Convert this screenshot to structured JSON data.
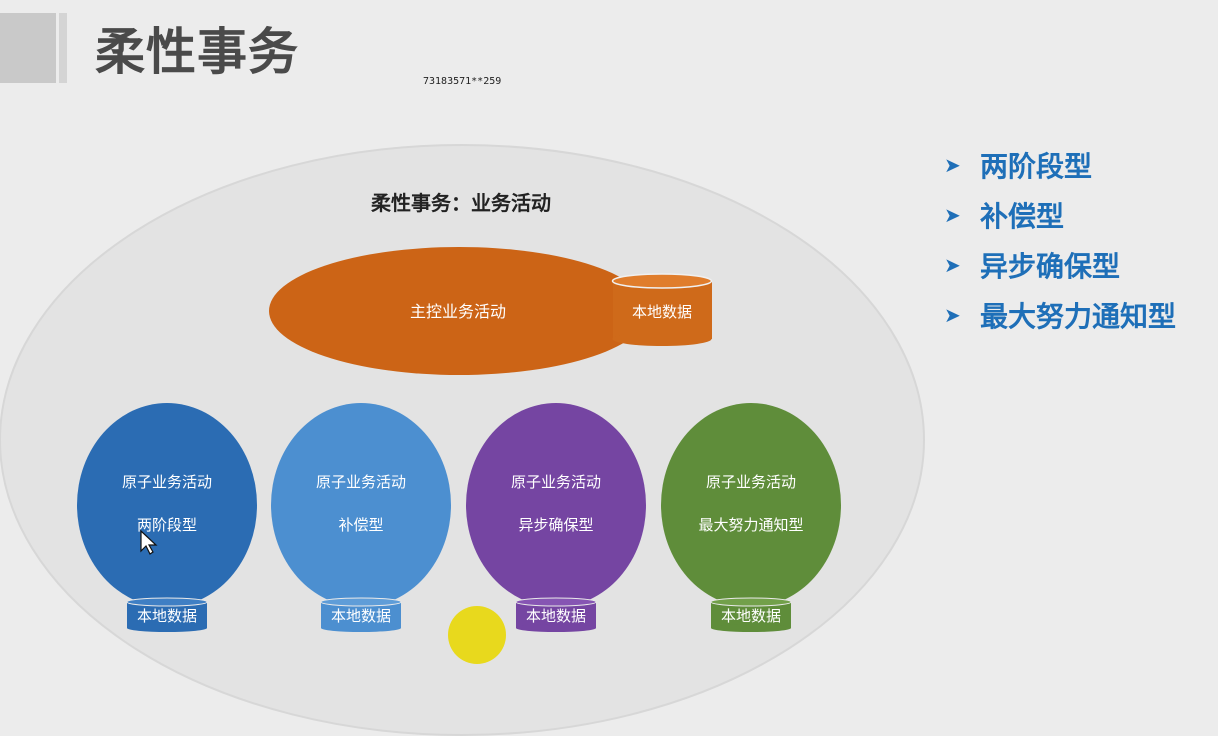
{
  "header": {
    "title": "柔性事务",
    "watermark_id": "73183571**259"
  },
  "diagram": {
    "title": "柔性事务：业务活动",
    "main_activity": {
      "label": "主控业务活动",
      "storage_label": "本地数据",
      "color": "#cc6416"
    },
    "atomic_activities": [
      {
        "line1": "原子业务活动",
        "line2": "两阶段型",
        "storage": "本地数据",
        "color": "#2b6cb3"
      },
      {
        "line1": "原子业务活动",
        "line2": "补偿型",
        "storage": "本地数据",
        "color": "#4c8fd0"
      },
      {
        "line1": "原子业务活动",
        "line2": "异步确保型",
        "storage": "本地数据",
        "color": "#7545a2"
      },
      {
        "line1": "原子业务活动",
        "line2": "最大努力通知型",
        "storage": "本地数据",
        "color": "#5f8d3a"
      }
    ]
  },
  "types": [
    {
      "label": "两阶段型"
    },
    {
      "label": "补偿型"
    },
    {
      "label": "异步确保型"
    },
    {
      "label": "最大努力通知型"
    }
  ],
  "colors": {
    "accent_blue": "#1e6fb8",
    "cursor_highlight": "#e8d812",
    "outer_ellipse": "#e3e3e3"
  }
}
